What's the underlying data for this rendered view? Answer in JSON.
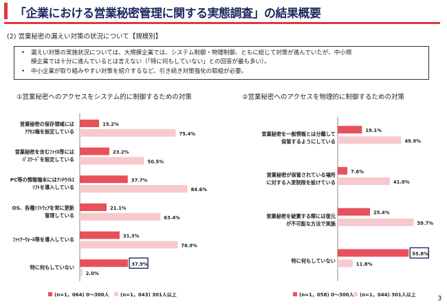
{
  "header": {
    "title": "「企業における営業秘密管理に関する実態調査」の結果概要",
    "accent_color": "#e0353c",
    "title_color": "#1b2a5e"
  },
  "section": {
    "heading": "(2) 営業秘密の漏えい対策の状況について【規模別】"
  },
  "notes": {
    "bullet_1_line_1": "漏えい対策の実施状況については、大規模企業では、システム制御・物理制御、ともに総じて対策が進んでいたが、中小規",
    "bullet_1_line_2": "模企業では十分に進んでいるとは言えない（「特に何もしていない」との回答が最も多い）。",
    "bullet_2": "中小企業が取り組みやすい対策を紹介するなど、引き続き対策強化の取組が必要。",
    "bullet_symbol": "•"
  },
  "colors": {
    "small": "#e8505b",
    "large": "#f7c9cd",
    "highlight_border": "#1b2a5e"
  },
  "chart_data": [
    {
      "type": "bar",
      "orientation": "horizontal",
      "title": "①営業秘密へのアクセスをシステム的に制御するための対策",
      "categories": [
        [
          "営業秘密の保存領域には",
          "ｱｸｾｽ権を設定している"
        ],
        [
          "営業秘密を含むﾌｧｲﾙ等には",
          "ﾊﾟｽﾜｰﾄﾞを設定している"
        ],
        [
          "PC等の情報端末にはｱﾝﾁｳｲﾙｽ",
          "ｿﾌﾄを導入している"
        ],
        [
          "OS、各種ｿﾌﾄｳｪｱを常に更新",
          "管理している"
        ],
        [
          "ﾌｧｲｱｰｳｫｰﾙ等を導入している"
        ],
        [
          "特に何もしていない"
        ]
      ],
      "series": [
        {
          "name": "(n=1，064) 0～300人",
          "values": [
            15.2,
            23.2,
            37.7,
            21.1,
            31.3,
            37.9
          ]
        },
        {
          "name": "(n=1，043) 301人以上",
          "values": [
            75.4,
            50.5,
            84.6,
            63.4,
            76.9,
            2.0
          ]
        }
      ],
      "highlight": {
        "series": 0,
        "category": 5
      },
      "value_suffix": "%",
      "xlim": [
        0,
        100
      ],
      "legend": "bottom"
    },
    {
      "type": "bar",
      "orientation": "horizontal",
      "title": "②営業秘密へのアクセスを物理的に制御するための対策",
      "categories": [
        [
          "営業秘密を一般情報とは分離して",
          "保管するようにしている"
        ],
        [
          "営業秘密が保管されている場所",
          "に対する入室制限を設けている"
        ],
        [
          "営業秘密を破棄する際には復元",
          "が不可能な方法で実施"
        ],
        [
          "特に何もしていない"
        ]
      ],
      "series": [
        {
          "name": "(n=1，058) 0～300人",
          "values": [
            19.1,
            7.6,
            25.4,
            55.8
          ]
        },
        {
          "name": "(n=1，044) 301人以上",
          "values": [
            49.9,
            41.0,
            59.7,
            11.8
          ]
        }
      ],
      "highlight": {
        "series": 0,
        "category": 3
      },
      "value_suffix": "%",
      "xlim": [
        0,
        100
      ],
      "legend": "bottom"
    }
  ],
  "page": {
    "number": "3"
  }
}
